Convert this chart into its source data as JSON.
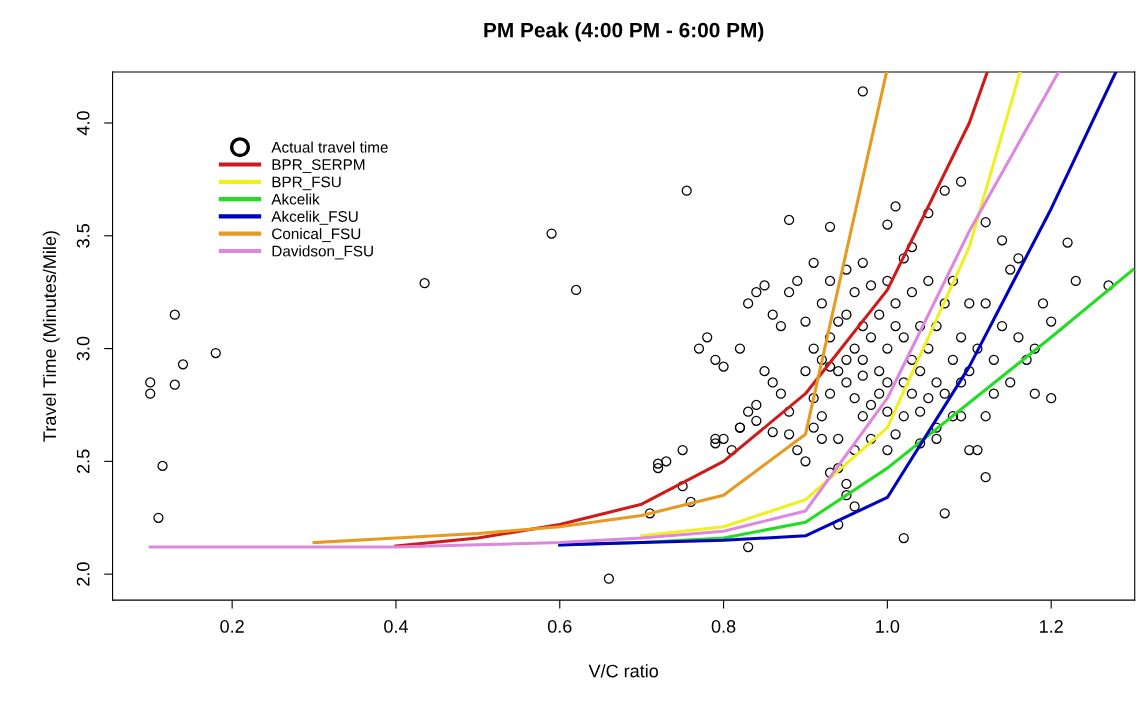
{
  "chart_data": {
    "type": "line",
    "title": "PM Peak (4:00 PM - 6:00 PM)",
    "xlabel": "V/C ratio",
    "ylabel": "Travel Time (Minutes/Mile)",
    "xlim": [
      0.054,
      1.302
    ],
    "ylim": [
      1.885,
      4.226
    ],
    "xticks": [
      0.2,
      0.4,
      0.6,
      0.8,
      {
        "value": 1.0,
        "label": "1.0"
      },
      1.2
    ],
    "yticks": [
      {
        "value": 2.0,
        "label": "2.0"
      },
      {
        "value": 2.5,
        "label": "2.5"
      },
      {
        "value": 3.0,
        "label": "3.0"
      },
      {
        "value": 3.5,
        "label": "3.5"
      },
      {
        "value": 4.0,
        "label": "4.0"
      }
    ],
    "grid": false,
    "legend": "top left",
    "series": [
      {
        "name": "Actual travel time",
        "type": "scatter",
        "marker": "circle",
        "color": "#000000",
        "x": [
          0.1,
          0.1,
          0.13,
          0.13,
          0.14,
          0.18,
          0.11,
          0.115,
          0.435,
          0.59,
          0.62,
          0.66,
          0.755,
          0.97,
          1.02,
          1.07,
          0.83,
          0.72,
          0.72,
          0.73,
          0.75,
          0.71,
          0.76,
          0.75,
          0.82,
          0.79,
          0.8,
          0.84,
          0.86,
          0.91,
          0.92,
          0.93,
          0.94,
          0.95,
          0.96,
          0.94,
          0.95,
          1.0,
          1.04,
          1.06,
          1.12,
          1.11,
          1.1,
          1.08,
          0.88,
          0.93,
          0.95,
          0.97,
          1.0,
          1.01,
          1.03,
          1.05,
          1.07,
          1.09,
          1.12,
          1.14,
          1.22,
          1.23,
          1.27,
          1.19,
          1.2,
          1.18,
          1.15,
          1.16,
          1.18,
          1.2,
          1.17,
          1.15,
          1.13,
          1.12,
          1.1,
          1.09,
          1.1,
          1.12,
          1.14,
          1.16,
          1.13,
          1.11,
          0.78,
          0.77,
          0.79,
          0.8,
          0.82,
          0.83,
          0.84,
          0.85,
          0.86,
          0.87,
          0.88,
          0.89,
          0.85,
          0.86,
          0.87,
          0.84,
          0.83,
          0.82,
          0.81,
          0.79,
          0.88,
          0.88,
          0.89,
          0.9,
          0.91,
          0.9,
          0.91,
          0.92,
          0.93,
          0.94,
          0.95,
          0.96,
          0.94,
          0.95,
          0.93,
          0.92,
          0.96,
          0.97,
          0.98,
          0.99,
          1.0,
          1.01,
          1.02,
          1.0,
          0.99,
          0.98,
          0.97,
          0.96,
          1.03,
          1.04,
          1.05,
          1.06,
          1.07,
          1.06,
          1.05,
          1.04,
          1.03,
          1.02,
          1.01,
          0.97,
          0.95,
          0.93,
          1.08,
          1.05,
          1.03,
          1.0,
          0.98,
          1.02,
          1.08,
          1.07,
          1.09,
          1.06,
          1.09,
          0.98,
          0.96,
          0.94,
          0.92,
          1.0,
          1.02,
          0.99,
          0.97,
          1.04,
          1.01,
          0.93,
          0.9,
          0.91
        ],
        "values": [
          2.85,
          2.8,
          3.15,
          2.84,
          2.93,
          2.98,
          2.25,
          2.48,
          3.29,
          3.51,
          3.26,
          1.98,
          3.7,
          4.14,
          2.16,
          2.27,
          2.12,
          2.47,
          2.49,
          2.5,
          2.55,
          2.27,
          2.32,
          2.39,
          2.65,
          2.58,
          2.6,
          2.68,
          2.63,
          2.65,
          2.6,
          2.45,
          2.47,
          2.35,
          2.3,
          2.22,
          2.4,
          2.55,
          2.58,
          2.65,
          2.43,
          2.55,
          2.55,
          2.7,
          3.57,
          3.54,
          3.35,
          3.38,
          3.55,
          3.63,
          3.45,
          3.6,
          3.7,
          3.74,
          3.56,
          3.48,
          3.47,
          3.3,
          3.28,
          3.2,
          3.12,
          3.0,
          3.35,
          3.4,
          2.8,
          2.78,
          2.95,
          2.85,
          2.8,
          2.7,
          2.9,
          3.05,
          3.2,
          3.2,
          3.1,
          3.05,
          2.95,
          3.0,
          3.05,
          3.0,
          2.95,
          2.92,
          3.0,
          3.2,
          3.25,
          3.28,
          3.15,
          3.1,
          3.25,
          3.3,
          2.9,
          2.85,
          2.8,
          2.75,
          2.72,
          2.65,
          2.55,
          2.6,
          2.72,
          2.62,
          2.55,
          2.5,
          2.78,
          3.12,
          3.38,
          3.2,
          3.05,
          3.12,
          3.15,
          3.25,
          2.9,
          2.85,
          2.8,
          2.95,
          2.78,
          2.7,
          2.75,
          2.9,
          3.0,
          3.1,
          3.05,
          2.85,
          3.15,
          3.05,
          2.95,
          3.0,
          2.95,
          2.9,
          3.0,
          3.1,
          3.2,
          2.85,
          2.78,
          2.72,
          2.8,
          2.7,
          2.62,
          2.88,
          2.95,
          2.92,
          3.3,
          3.3,
          3.25,
          3.3,
          3.28,
          3.4,
          2.95,
          2.8,
          2.85,
          2.6,
          2.7,
          2.6,
          2.55,
          2.6,
          2.7,
          2.72,
          2.85,
          2.8,
          3.1,
          3.1,
          3.2,
          3.3,
          2.9,
          3.0
        ]
      },
      {
        "name": "BPR_SERPM",
        "color": "#d01a1a",
        "x": [
          0.4,
          0.5,
          0.6,
          0.7,
          0.8,
          0.9,
          1.0,
          1.1,
          1.122
        ],
        "values": [
          2.125,
          2.16,
          2.22,
          2.31,
          2.5,
          2.8,
          3.26,
          4.0,
          4.226
        ]
      },
      {
        "name": "BPR_FSU",
        "color": "#f0f020",
        "x": [
          0.7,
          0.8,
          0.9,
          1.0,
          1.1,
          1.162
        ],
        "values": [
          2.17,
          2.21,
          2.33,
          2.65,
          3.45,
          4.226
        ]
      },
      {
        "name": "Akcelik",
        "color": "#22dd22",
        "x": [
          0.6,
          0.7,
          0.8,
          0.9,
          1.0,
          1.1,
          1.2,
          1.3
        ],
        "values": [
          2.13,
          2.14,
          2.16,
          2.23,
          2.47,
          2.76,
          3.05,
          3.35
        ]
      },
      {
        "name": "Akcelik_FSU",
        "color": "#0000c0",
        "x": [
          0.6,
          0.7,
          0.8,
          0.9,
          1.0,
          1.1,
          1.2,
          1.279
        ],
        "values": [
          2.13,
          2.14,
          2.15,
          2.17,
          2.34,
          2.92,
          3.62,
          4.226
        ]
      },
      {
        "name": "Conical_FSU",
        "color": "#e69a20",
        "x": [
          0.3,
          0.4,
          0.5,
          0.6,
          0.7,
          0.8,
          0.9,
          0.999
        ],
        "values": [
          2.14,
          2.16,
          2.18,
          2.21,
          2.26,
          2.35,
          2.62,
          4.226
        ]
      },
      {
        "name": "Davidson_FSU",
        "color": "#dd88dd",
        "x": [
          0.1,
          0.2,
          0.3,
          0.4,
          0.5,
          0.6,
          0.7,
          0.8,
          0.9,
          1.0,
          1.1,
          1.209
        ],
        "values": [
          2.12,
          2.12,
          2.12,
          2.12,
          2.13,
          2.14,
          2.16,
          2.19,
          2.28,
          2.78,
          3.52,
          4.226
        ]
      }
    ]
  }
}
